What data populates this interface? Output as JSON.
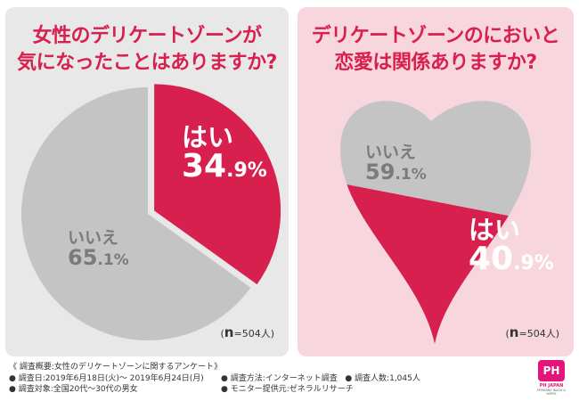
{
  "colors": {
    "yes": "#d8204e",
    "no": "#c4c4c4",
    "title": "#d8204e"
  },
  "chart_data": [
    {
      "type": "pie",
      "title": "女性のデリケートゾーンが気になったことはありますか?",
      "categories": [
        "はい",
        "いいえ"
      ],
      "values": [
        34.9,
        65.1
      ],
      "value_suffix": "%",
      "n": "(n=504人)"
    },
    {
      "type": "pie",
      "shape": "heart (filled proportion)",
      "title": "デリケートゾーンのにおいと恋愛は関係ありますか?",
      "categories": [
        "いいえ",
        "はい"
      ],
      "values": [
        59.1,
        40.9
      ],
      "value_suffix": "%",
      "n": "(n=504人)"
    }
  ],
  "left": {
    "title_line1": "女性のデリケートゾーンが",
    "title_line2": "気になったことはありますか?",
    "yes_label": "はい",
    "yes_pct_int": "34",
    "yes_pct_dec": ".9%",
    "no_label": "いいえ",
    "no_pct_int": "65",
    "no_pct_dec": ".1%",
    "n_letter": "n",
    "n_rest": "=504人)",
    "n_open": "("
  },
  "right": {
    "title_line1": "デリケートゾーンのにおいと",
    "title_line2": "恋愛は関係ありますか?",
    "no_label": "いいえ",
    "no_pct_int": "59",
    "no_pct_dec": ".1%",
    "yes_label": "はい",
    "yes_pct_int": "40",
    "yes_pct_dec": ".9%",
    "n_letter": "n",
    "n_rest": "=504人)",
    "n_open": "("
  },
  "footer": {
    "overview": "《 調査概要:女性のデリケートゾーンに関するアンケート》",
    "date": "● 調査日:2019年6月18日(火)〜 2019年6月24日(月)",
    "method": "● 調査方法:インターネット調査",
    "count": "● 調査人数:1,045人",
    "target": "● 調査対象:全国20代〜30代の男女",
    "provider": "● モニター提供元:ゼネラルリサーチ"
  },
  "logo": {
    "badge": "PH",
    "name": "PH JAPAN",
    "sub": "FEMININE WASH & WIPES"
  }
}
